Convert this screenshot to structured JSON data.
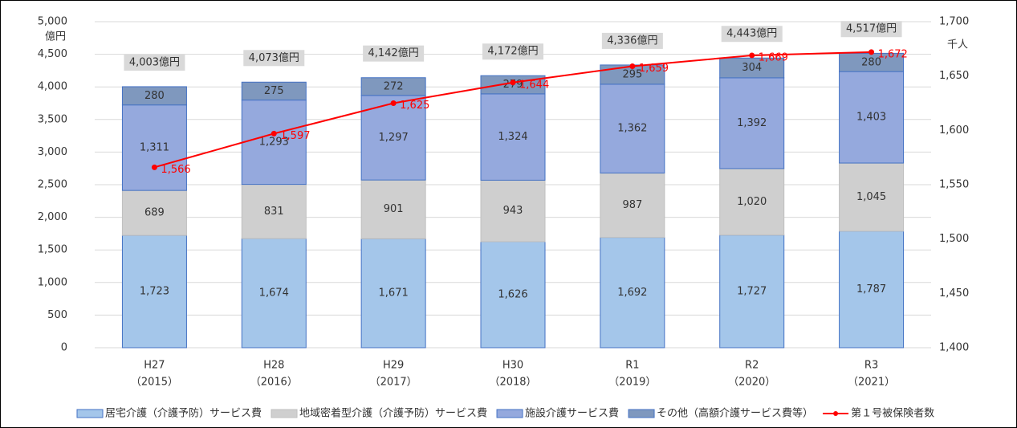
{
  "chart_data": {
    "type": "stacked-bar-line",
    "categories": [
      "H27",
      "H28",
      "H29",
      "H30",
      "R1",
      "R2",
      "R3"
    ],
    "category_years": [
      "（2015）",
      "（2016）",
      "（2017）",
      "（2018）",
      "（2019）",
      "（2020）",
      "（2021）"
    ],
    "y_unit": "億円",
    "y2_unit": "千人",
    "ylim": [
      0,
      5000
    ],
    "yticks": [
      0,
      500,
      {
        "value": 1000,
        "label": "1,000"
      },
      {
        "value": 1500,
        "label": "1,500"
      },
      {
        "value": 2000,
        "label": "2,000"
      },
      {
        "value": 2500,
        "label": "2,500"
      },
      {
        "value": 3000,
        "label": "3,000"
      },
      {
        "value": 3500,
        "label": "3,500"
      },
      {
        "value": 4000,
        "label": "4,000"
      },
      {
        "value": 4500,
        "label": "4,500"
      },
      {
        "value": 5000,
        "label": "5,000"
      }
    ],
    "y2lim": [
      1400,
      1700
    ],
    "y2ticks": [
      {
        "value": 1400,
        "label": "1,400"
      },
      {
        "value": 1450,
        "label": "1,450"
      },
      {
        "value": 1500,
        "label": "1,500"
      },
      {
        "value": 1550,
        "label": "1,550"
      },
      {
        "value": 1600,
        "label": "1,600"
      },
      {
        "value": 1650,
        "label": "1,650"
      },
      {
        "value": 1700,
        "label": "1,700"
      }
    ],
    "grid": true,
    "series": [
      {
        "name": "居宅介護（介護予防）サービス費",
        "color": "#a4c6ea",
        "values": [
          1723,
          1674,
          1671,
          1626,
          1692,
          1727,
          1787
        ],
        "value_labels": [
          "1,723",
          "1,674",
          "1,671",
          "1,626",
          "1,692",
          "1,727",
          "1,787"
        ]
      },
      {
        "name": "地域密着型介護（介護予防）サービス費",
        "color": "#cfcfcf",
        "values": [
          689,
          831,
          901,
          943,
          987,
          1020,
          1045
        ],
        "value_labels": [
          "689",
          "831",
          "901",
          "943",
          "987",
          "1,020",
          "1,045"
        ]
      },
      {
        "name": "施設介護サービス費",
        "color": "#95a9dd",
        "values": [
          1311,
          1293,
          1297,
          1324,
          1362,
          1392,
          1403
        ],
        "value_labels": [
          "1,311",
          "1,293",
          "1,297",
          "1,324",
          "1,362",
          "1,392",
          "1,403"
        ]
      },
      {
        "name": "その他（高額介護サービス費等）",
        "color": "#7f98be",
        "values": [
          280,
          275,
          272,
          279,
          295,
          304,
          280
        ],
        "value_labels": [
          "280",
          "275",
          "272",
          "279",
          "295",
          "304",
          "280"
        ]
      },
      {
        "name": "第１号被保険者数",
        "type": "line",
        "axis": "y2",
        "color": "#ff0000",
        "values": [
          1566,
          1597,
          1625,
          1644,
          1659,
          1669,
          1672
        ],
        "value_labels": [
          "1,566",
          "1,597",
          "1,625",
          "1,644",
          "1,659",
          "1,669",
          "1,672"
        ]
      }
    ],
    "totals": [
      4003,
      4073,
      4142,
      4172,
      4336,
      4443,
      4517
    ],
    "total_labels": [
      "4,003億円",
      "4,073億円",
      "4,142億円",
      "4,172億円",
      "4,336億円",
      "4,443億円",
      "4,517億円"
    ]
  }
}
